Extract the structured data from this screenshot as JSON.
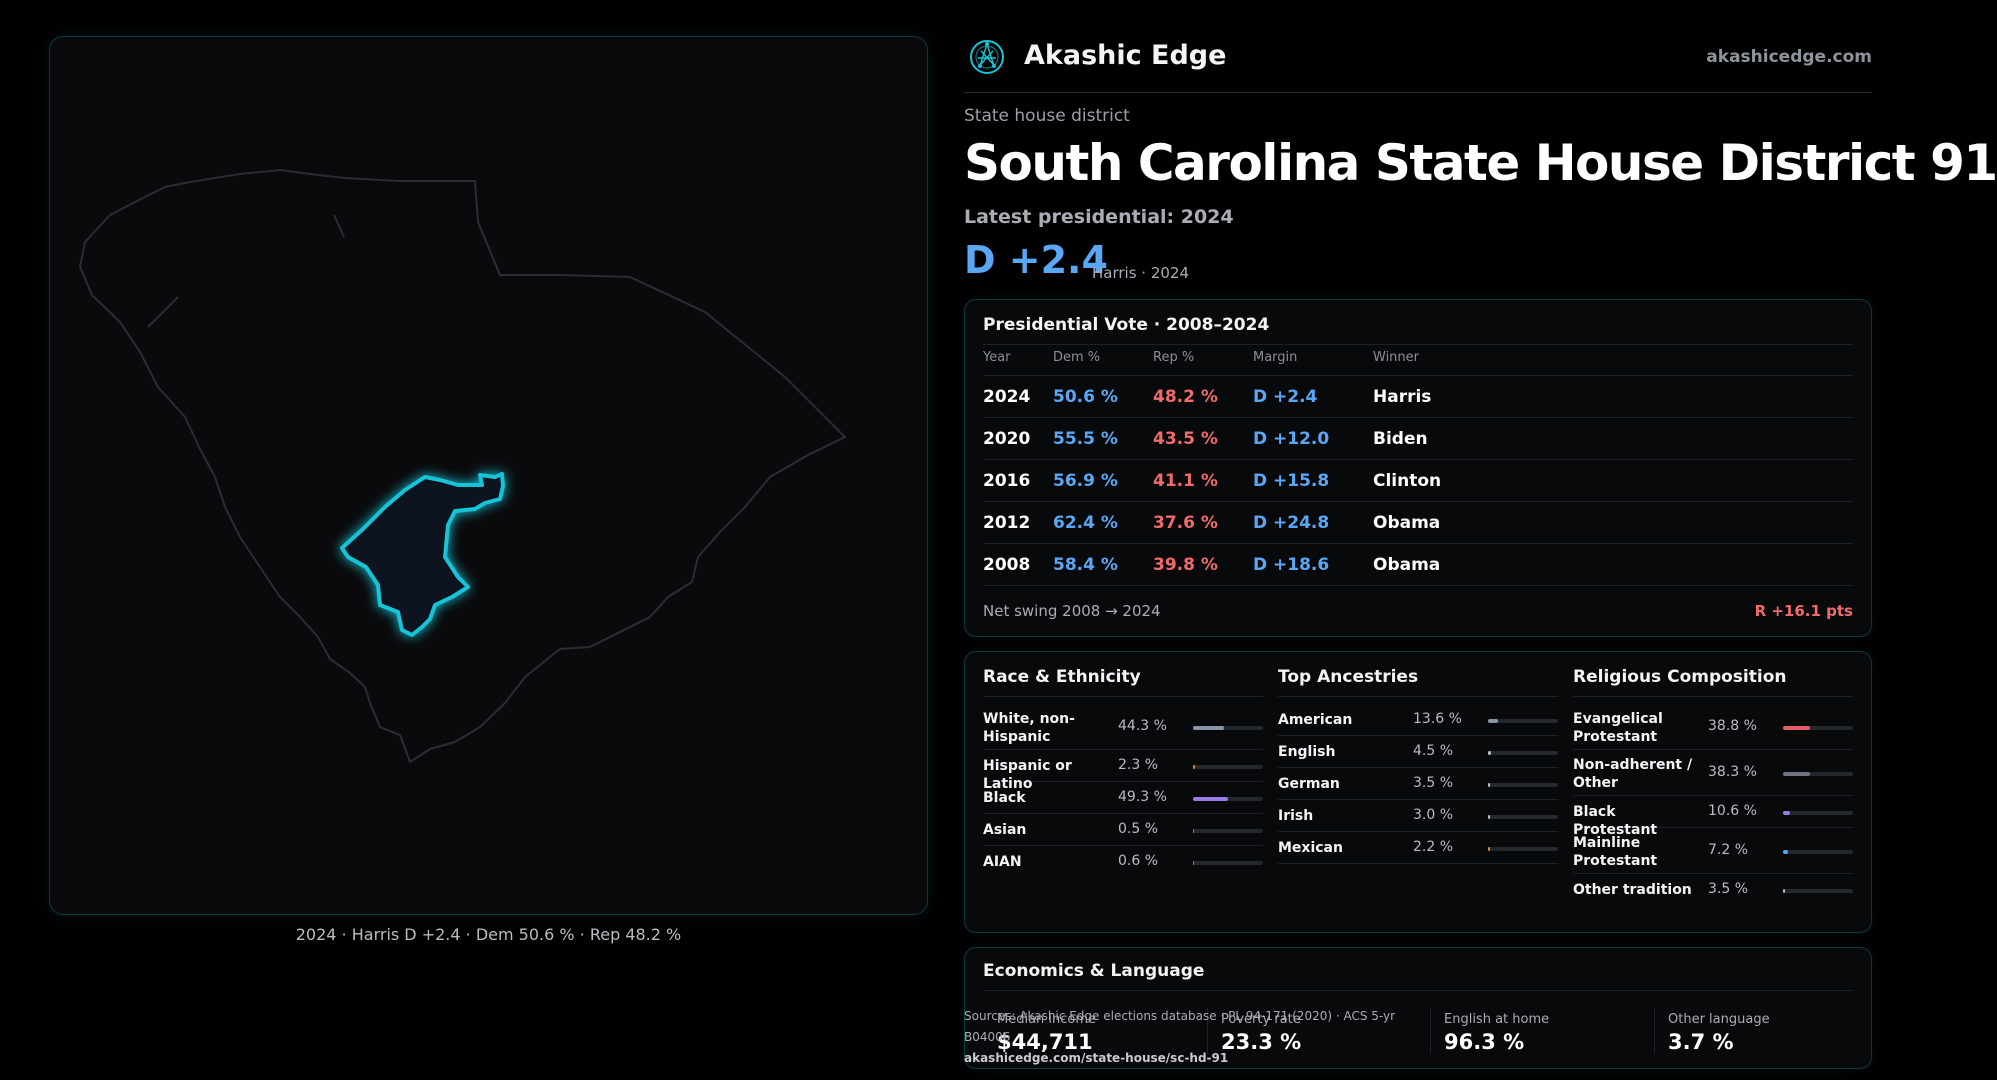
{
  "brand": {
    "name": "Akashic Edge",
    "url": "akashicedge.com",
    "logo_icon": "network-globe-icon",
    "accent": "#17c3d6"
  },
  "map": {
    "caption": "2024 · Harris D +2.4 · Dem 50.6 % · Rep 48.2 %",
    "highlight_color": "#17c3d6"
  },
  "district": {
    "kicker": "State house district",
    "title": "South Carolina State House District 91",
    "latest_label": "Latest presidential: 2024",
    "margin": "D +2.4",
    "margin_sub": "Harris · 2024"
  },
  "presidential": {
    "title": "Presidential Vote · 2008–2024",
    "headers": {
      "year": "Year",
      "dem": "Dem %",
      "rep": "Rep %",
      "margin": "Margin",
      "winner": "Winner"
    },
    "rows": [
      {
        "year": "2024",
        "dem": "50.6 %",
        "rep": "48.2 %",
        "margin": "D +2.4",
        "winner": "Harris"
      },
      {
        "year": "2020",
        "dem": "55.5 %",
        "rep": "43.5 %",
        "margin": "D +12.0",
        "winner": "Biden"
      },
      {
        "year": "2016",
        "dem": "56.9 %",
        "rep": "41.1 %",
        "margin": "D +15.8",
        "winner": "Clinton"
      },
      {
        "year": "2012",
        "dem": "62.4 %",
        "rep": "37.6 %",
        "margin": "D +24.8",
        "winner": "Obama"
      },
      {
        "year": "2008",
        "dem": "58.4 %",
        "rep": "39.8 %",
        "margin": "D +18.6",
        "winner": "Obama"
      }
    ],
    "swing_label": "Net swing 2008 → 2024",
    "swing_value": "R +16.1 pts"
  },
  "race": {
    "title": "Race & Ethnicity",
    "items": [
      {
        "label": "White, non-Hispanic",
        "pct": "44.3 %",
        "value": 44.3,
        "color": "#8a94a6"
      },
      {
        "label": "Hispanic or Latino",
        "pct": "2.3 %",
        "value": 2.3,
        "color": "#d68a2e"
      },
      {
        "label": "Black",
        "pct": "49.3 %",
        "value": 49.3,
        "color": "#9b7be8"
      },
      {
        "label": "Asian",
        "pct": "0.5 %",
        "value": 0.5,
        "color": "#2fb8a6"
      },
      {
        "label": "AIAN",
        "pct": "0.6 %",
        "value": 0.6,
        "color": "#e06a4a"
      }
    ]
  },
  "ancestry": {
    "title": "Top Ancestries",
    "items": [
      {
        "label": "American",
        "pct": "13.6 %",
        "value": 13.6,
        "color": "#8a94a6"
      },
      {
        "label": "English",
        "pct": "4.5 %",
        "value": 4.5,
        "color": "#b6bcc6"
      },
      {
        "label": "German",
        "pct": "3.5 %",
        "value": 3.5,
        "color": "#b6bcc6"
      },
      {
        "label": "Irish",
        "pct": "3.0 %",
        "value": 3.0,
        "color": "#b6bcc6"
      },
      {
        "label": "Mexican",
        "pct": "2.2 %",
        "value": 2.2,
        "color": "#d68a2e"
      }
    ]
  },
  "religion": {
    "title": "Religious Composition",
    "items": [
      {
        "label": "Evangelical Protestant",
        "pct": "38.8 %",
        "value": 38.8,
        "color": "#e85a66"
      },
      {
        "label": "Non-adherent / Other",
        "pct": "38.3 %",
        "value": 38.3,
        "color": "#6f7480"
      },
      {
        "label": "Black Protestant",
        "pct": "10.6 %",
        "value": 10.6,
        "color": "#9b7be8"
      },
      {
        "label": "Mainline Protestant",
        "pct": "7.2 %",
        "value": 7.2,
        "color": "#5aa8f5"
      },
      {
        "label": "Other tradition",
        "pct": "3.5 %",
        "value": 3.5,
        "color": "#b6bcc6"
      }
    ]
  },
  "economics": {
    "title": "Economics & Language",
    "stats": [
      {
        "label": "Median income",
        "value": "$44,711"
      },
      {
        "label": "Poverty rate",
        "value": "23.3 %"
      },
      {
        "label": "English at home",
        "value": "96.3 %"
      },
      {
        "label": "Other language",
        "value": "3.7 %"
      }
    ]
  },
  "source": {
    "text": "Sources: Akashic Edge elections database · PL 94-171 (2020) · ACS 5-yr B04006",
    "url": "akashicedge.com/state-house/sc-hd-91"
  }
}
